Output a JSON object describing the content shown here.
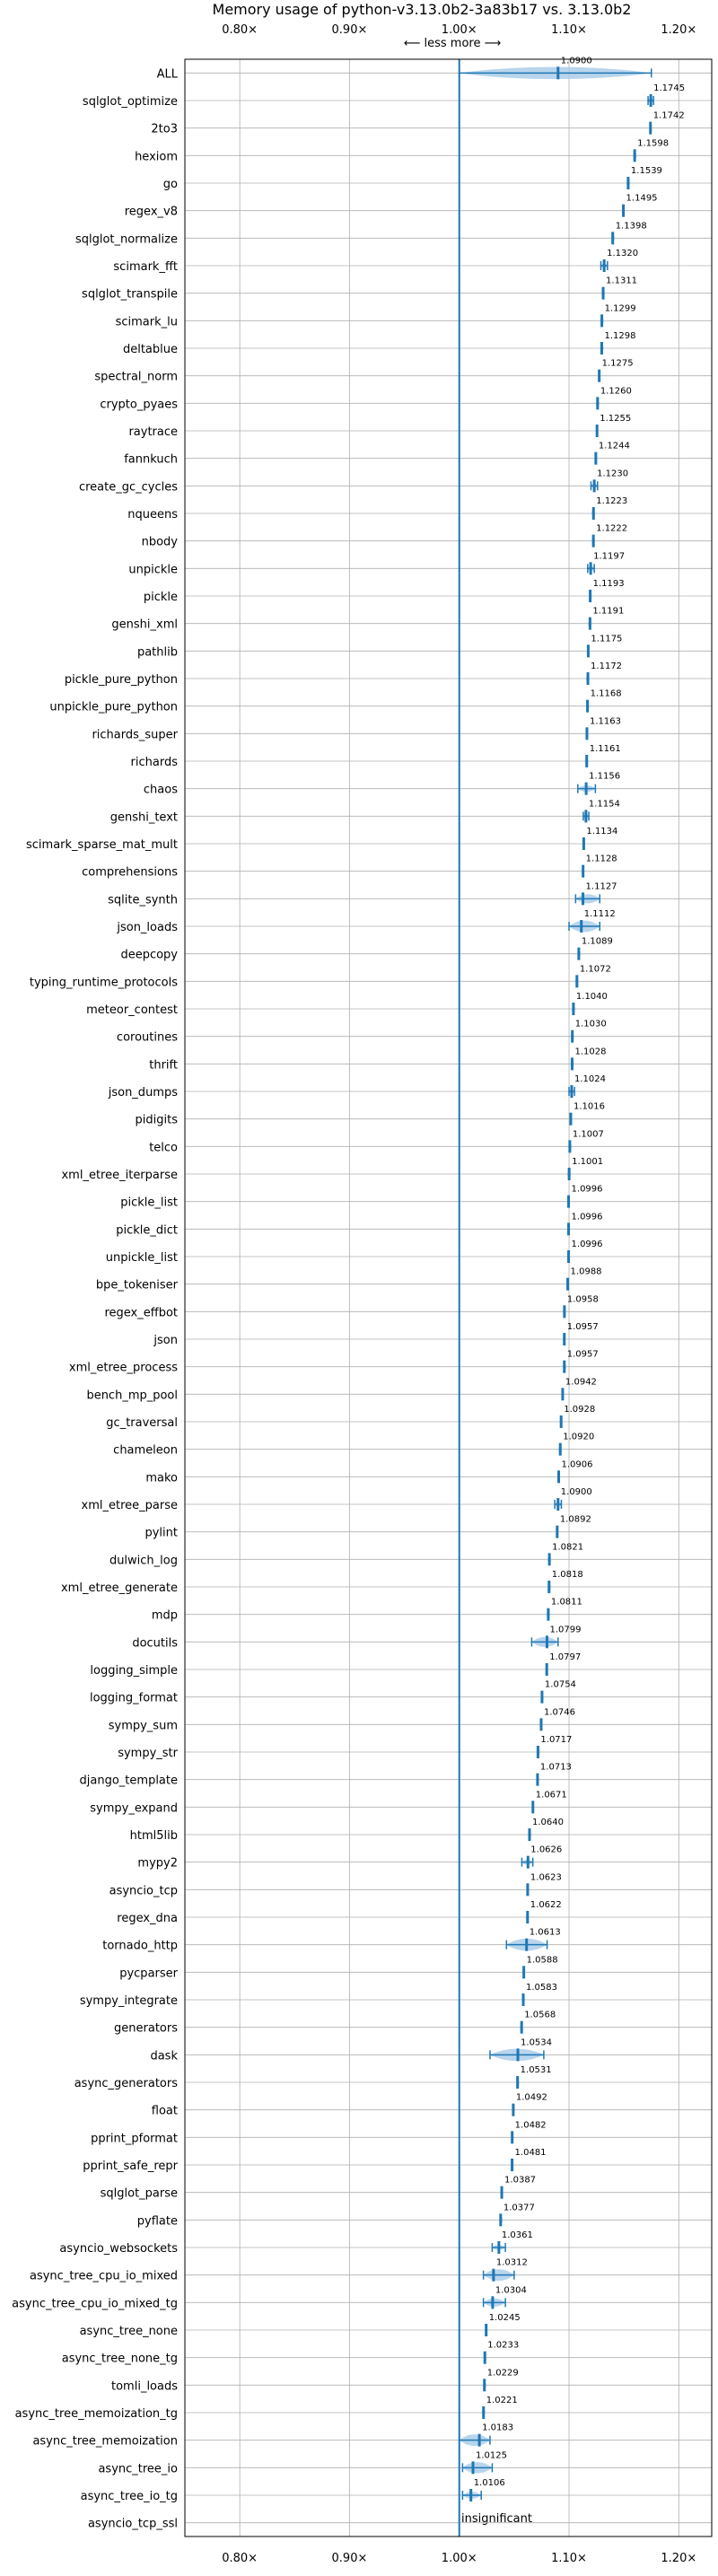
{
  "chart_data": {
    "type": "violin",
    "title": "Memory usage of python-v3.13.0b2-3a83b17 vs. 3.13.0b2",
    "xlim": [
      0.75,
      1.23
    ],
    "x_ticks": [
      {
        "value": 0.8,
        "label": "0.80×"
      },
      {
        "value": 0.9,
        "label": "0.90×"
      },
      {
        "value": 1.0,
        "label": "1.00×"
      },
      {
        "value": 1.1,
        "label": "1.10×"
      },
      {
        "value": 1.2,
        "label": "1.20×"
      }
    ],
    "reference_x": 1.0,
    "direction_label": "⟵ less   more ⟶",
    "insignificant_label": "insignificant",
    "grid": true,
    "colors": {
      "violin": "#a8cbe8",
      "marker": "#1f77b4",
      "grid": "#b0b0b0",
      "reference": "#1f77b4"
    },
    "benchmarks": [
      {
        "name": "ALL",
        "value": 1.09,
        "label": "1.0900",
        "lo": 1.0,
        "hi": 1.175
      },
      {
        "name": "sqlglot_optimize",
        "value": 1.1745,
        "label": "1.1745",
        "lo": 1.172,
        "hi": 1.177
      },
      {
        "name": "2to3",
        "value": 1.1742,
        "label": "1.1742",
        "lo": 1.173,
        "hi": 1.175
      },
      {
        "name": "hexiom",
        "value": 1.1598,
        "label": "1.1598",
        "lo": 1.158,
        "hi": 1.162
      },
      {
        "name": "go",
        "value": 1.1539,
        "label": "1.1539",
        "lo": 1.152,
        "hi": 1.156
      },
      {
        "name": "regex_v8",
        "value": 1.1495,
        "label": "1.1495",
        "lo": 1.148,
        "hi": 1.151
      },
      {
        "name": "sqlglot_normalize",
        "value": 1.1398,
        "label": "1.1398",
        "lo": 1.138,
        "hi": 1.142
      },
      {
        "name": "scimark_fft",
        "value": 1.132,
        "label": "1.1320",
        "lo": 1.129,
        "hi": 1.135
      },
      {
        "name": "sqlglot_transpile",
        "value": 1.1311,
        "label": "1.1311",
        "lo": 1.129,
        "hi": 1.133
      },
      {
        "name": "scimark_lu",
        "value": 1.1299,
        "label": "1.1299",
        "lo": 1.128,
        "hi": 1.132
      },
      {
        "name": "deltablue",
        "value": 1.1298,
        "label": "1.1298",
        "lo": 1.128,
        "hi": 1.132
      },
      {
        "name": "spectral_norm",
        "value": 1.1275,
        "label": "1.1275",
        "lo": 1.126,
        "hi": 1.129
      },
      {
        "name": "crypto_pyaes",
        "value": 1.126,
        "label": "1.1260",
        "lo": 1.124,
        "hi": 1.128
      },
      {
        "name": "raytrace",
        "value": 1.1255,
        "label": "1.1255",
        "lo": 1.124,
        "hi": 1.127
      },
      {
        "name": "fannkuch",
        "value": 1.1244,
        "label": "1.1244",
        "lo": 1.123,
        "hi": 1.126
      },
      {
        "name": "create_gc_cycles",
        "value": 1.123,
        "label": "1.1230",
        "lo": 1.12,
        "hi": 1.126
      },
      {
        "name": "nqueens",
        "value": 1.1223,
        "label": "1.1223",
        "lo": 1.12,
        "hi": 1.124
      },
      {
        "name": "nbody",
        "value": 1.1222,
        "label": "1.1222",
        "lo": 1.12,
        "hi": 1.124
      },
      {
        "name": "unpickle",
        "value": 1.1197,
        "label": "1.1197",
        "lo": 1.117,
        "hi": 1.123
      },
      {
        "name": "pickle",
        "value": 1.1193,
        "label": "1.1193",
        "lo": 1.118,
        "hi": 1.121
      },
      {
        "name": "genshi_xml",
        "value": 1.1191,
        "label": "1.1191",
        "lo": 1.117,
        "hi": 1.121
      },
      {
        "name": "pathlib",
        "value": 1.1175,
        "label": "1.1175",
        "lo": 1.116,
        "hi": 1.119
      },
      {
        "name": "pickle_pure_python",
        "value": 1.1172,
        "label": "1.1172",
        "lo": 1.115,
        "hi": 1.119
      },
      {
        "name": "unpickle_pure_python",
        "value": 1.1168,
        "label": "1.1168",
        "lo": 1.115,
        "hi": 1.119
      },
      {
        "name": "richards_super",
        "value": 1.1163,
        "label": "1.1163",
        "lo": 1.115,
        "hi": 1.118
      },
      {
        "name": "richards",
        "value": 1.1161,
        "label": "1.1161",
        "lo": 1.114,
        "hi": 1.118
      },
      {
        "name": "chaos",
        "value": 1.1156,
        "label": "1.1156",
        "lo": 1.108,
        "hi": 1.124
      },
      {
        "name": "genshi_text",
        "value": 1.1154,
        "label": "1.1154",
        "lo": 1.113,
        "hi": 1.118
      },
      {
        "name": "scimark_sparse_mat_mult",
        "value": 1.1134,
        "label": "1.1134",
        "lo": 1.112,
        "hi": 1.115
      },
      {
        "name": "comprehensions",
        "value": 1.1128,
        "label": "1.1128",
        "lo": 1.111,
        "hi": 1.114
      },
      {
        "name": "sqlite_synth",
        "value": 1.1127,
        "label": "1.1127",
        "lo": 1.106,
        "hi": 1.128
      },
      {
        "name": "json_loads",
        "value": 1.1112,
        "label": "1.1112",
        "lo": 1.1,
        "hi": 1.128
      },
      {
        "name": "deepcopy",
        "value": 1.1089,
        "label": "1.1089",
        "lo": 1.107,
        "hi": 1.111
      },
      {
        "name": "typing_runtime_protocols",
        "value": 1.1072,
        "label": "1.1072",
        "lo": 1.105,
        "hi": 1.109
      },
      {
        "name": "meteor_contest",
        "value": 1.104,
        "label": "1.1040",
        "lo": 1.102,
        "hi": 1.106
      },
      {
        "name": "coroutines",
        "value": 1.103,
        "label": "1.1030",
        "lo": 1.101,
        "hi": 1.105
      },
      {
        "name": "thrift",
        "value": 1.1028,
        "label": "1.1028",
        "lo": 1.101,
        "hi": 1.105
      },
      {
        "name": "json_dumps",
        "value": 1.1024,
        "label": "1.1024",
        "lo": 1.1,
        "hi": 1.105
      },
      {
        "name": "pidigits",
        "value": 1.1016,
        "label": "1.1016",
        "lo": 1.1,
        "hi": 1.103
      },
      {
        "name": "telco",
        "value": 1.1007,
        "label": "1.1007",
        "lo": 1.099,
        "hi": 1.103
      },
      {
        "name": "xml_etree_iterparse",
        "value": 1.1001,
        "label": "1.1001",
        "lo": 1.098,
        "hi": 1.102
      },
      {
        "name": "pickle_list",
        "value": 1.0996,
        "label": "1.0996",
        "lo": 1.098,
        "hi": 1.101
      },
      {
        "name": "pickle_dict",
        "value": 1.0996,
        "label": "1.0996",
        "lo": 1.098,
        "hi": 1.101
      },
      {
        "name": "unpickle_list",
        "value": 1.0996,
        "label": "1.0996",
        "lo": 1.098,
        "hi": 1.101
      },
      {
        "name": "bpe_tokeniser",
        "value": 1.0988,
        "label": "1.0988",
        "lo": 1.097,
        "hi": 1.1
      },
      {
        "name": "regex_effbot",
        "value": 1.0958,
        "label": "1.0958",
        "lo": 1.094,
        "hi": 1.097
      },
      {
        "name": "json",
        "value": 1.0957,
        "label": "1.0957",
        "lo": 1.094,
        "hi": 1.097
      },
      {
        "name": "xml_etree_process",
        "value": 1.0957,
        "label": "1.0957",
        "lo": 1.094,
        "hi": 1.098
      },
      {
        "name": "bench_mp_pool",
        "value": 1.0942,
        "label": "1.0942",
        "lo": 1.093,
        "hi": 1.095
      },
      {
        "name": "gc_traversal",
        "value": 1.0928,
        "label": "1.0928",
        "lo": 1.091,
        "hi": 1.094
      },
      {
        "name": "chameleon",
        "value": 1.092,
        "label": "1.0920",
        "lo": 1.09,
        "hi": 1.094
      },
      {
        "name": "mako",
        "value": 1.0906,
        "label": "1.0906",
        "lo": 1.089,
        "hi": 1.092
      },
      {
        "name": "xml_etree_parse",
        "value": 1.09,
        "label": "1.0900",
        "lo": 1.087,
        "hi": 1.093
      },
      {
        "name": "pylint",
        "value": 1.0892,
        "label": "1.0892",
        "lo": 1.088,
        "hi": 1.09
      },
      {
        "name": "dulwich_log",
        "value": 1.0821,
        "label": "1.0821",
        "lo": 1.08,
        "hi": 1.084
      },
      {
        "name": "xml_etree_generate",
        "value": 1.0818,
        "label": "1.0818",
        "lo": 1.08,
        "hi": 1.084
      },
      {
        "name": "mdp",
        "value": 1.0811,
        "label": "1.0811",
        "lo": 1.079,
        "hi": 1.083
      },
      {
        "name": "docutils",
        "value": 1.0799,
        "label": "1.0799",
        "lo": 1.066,
        "hi": 1.09
      },
      {
        "name": "logging_simple",
        "value": 1.0797,
        "label": "1.0797",
        "lo": 1.078,
        "hi": 1.081
      },
      {
        "name": "logging_format",
        "value": 1.0754,
        "label": "1.0754",
        "lo": 1.074,
        "hi": 1.077
      },
      {
        "name": "sympy_sum",
        "value": 1.0746,
        "label": "1.0746",
        "lo": 1.073,
        "hi": 1.076
      },
      {
        "name": "sympy_str",
        "value": 1.0717,
        "label": "1.0717",
        "lo": 1.07,
        "hi": 1.074
      },
      {
        "name": "django_template",
        "value": 1.0713,
        "label": "1.0713",
        "lo": 1.07,
        "hi": 1.073
      },
      {
        "name": "sympy_expand",
        "value": 1.0671,
        "label": "1.0671",
        "lo": 1.066,
        "hi": 1.068
      },
      {
        "name": "html5lib",
        "value": 1.064,
        "label": "1.0640",
        "lo": 1.062,
        "hi": 1.066
      },
      {
        "name": "mypy2",
        "value": 1.0626,
        "label": "1.0626",
        "lo": 1.057,
        "hi": 1.067
      },
      {
        "name": "asyncio_tcp",
        "value": 1.0623,
        "label": "1.0623",
        "lo": 1.061,
        "hi": 1.064
      },
      {
        "name": "regex_dna",
        "value": 1.0622,
        "label": "1.0622",
        "lo": 1.06,
        "hi": 1.064
      },
      {
        "name": "tornado_http",
        "value": 1.0613,
        "label": "1.0613",
        "lo": 1.043,
        "hi": 1.08
      },
      {
        "name": "pycparser",
        "value": 1.0588,
        "label": "1.0588",
        "lo": 1.057,
        "hi": 1.06
      },
      {
        "name": "sympy_integrate",
        "value": 1.0583,
        "label": "1.0583",
        "lo": 1.057,
        "hi": 1.06
      },
      {
        "name": "generators",
        "value": 1.0568,
        "label": "1.0568",
        "lo": 1.055,
        "hi": 1.058
      },
      {
        "name": "dask",
        "value": 1.0534,
        "label": "1.0534",
        "lo": 1.028,
        "hi": 1.077
      },
      {
        "name": "async_generators",
        "value": 1.0531,
        "label": "1.0531",
        "lo": 1.052,
        "hi": 1.055
      },
      {
        "name": "float",
        "value": 1.0492,
        "label": "1.0492",
        "lo": 1.048,
        "hi": 1.051
      },
      {
        "name": "pprint_pformat",
        "value": 1.0482,
        "label": "1.0482",
        "lo": 1.047,
        "hi": 1.05
      },
      {
        "name": "pprint_safe_repr",
        "value": 1.0481,
        "label": "1.0481",
        "lo": 1.047,
        "hi": 1.05
      },
      {
        "name": "sqlglot_parse",
        "value": 1.0387,
        "label": "1.0387",
        "lo": 1.037,
        "hi": 1.04
      },
      {
        "name": "pyflate",
        "value": 1.0377,
        "label": "1.0377",
        "lo": 1.036,
        "hi": 1.04
      },
      {
        "name": "asyncio_websockets",
        "value": 1.0361,
        "label": "1.0361",
        "lo": 1.03,
        "hi": 1.042
      },
      {
        "name": "async_tree_cpu_io_mixed",
        "value": 1.0312,
        "label": "1.0312",
        "lo": 1.022,
        "hi": 1.05
      },
      {
        "name": "async_tree_cpu_io_mixed_tg",
        "value": 1.0304,
        "label": "1.0304",
        "lo": 1.022,
        "hi": 1.042
      },
      {
        "name": "async_tree_none",
        "value": 1.0245,
        "label": "1.0245",
        "lo": 1.023,
        "hi": 1.026
      },
      {
        "name": "async_tree_none_tg",
        "value": 1.0233,
        "label": "1.0233",
        "lo": 1.022,
        "hi": 1.025
      },
      {
        "name": "tomli_loads",
        "value": 1.0229,
        "label": "1.0229",
        "lo": 1.021,
        "hi": 1.025
      },
      {
        "name": "async_tree_memoization_tg",
        "value": 1.0221,
        "label": "1.0221",
        "lo": 1.02,
        "hi": 1.024
      },
      {
        "name": "async_tree_memoization",
        "value": 1.0183,
        "label": "1.0183",
        "lo": 1.0,
        "hi": 1.028
      },
      {
        "name": "async_tree_io",
        "value": 1.0125,
        "label": "1.0125",
        "lo": 1.003,
        "hi": 1.03
      },
      {
        "name": "async_tree_io_tg",
        "value": 1.0106,
        "label": "1.0106",
        "lo": 1.003,
        "hi": 1.02
      },
      {
        "name": "asyncio_tcp_ssl",
        "value": null,
        "label": "",
        "lo": null,
        "hi": null
      }
    ]
  }
}
